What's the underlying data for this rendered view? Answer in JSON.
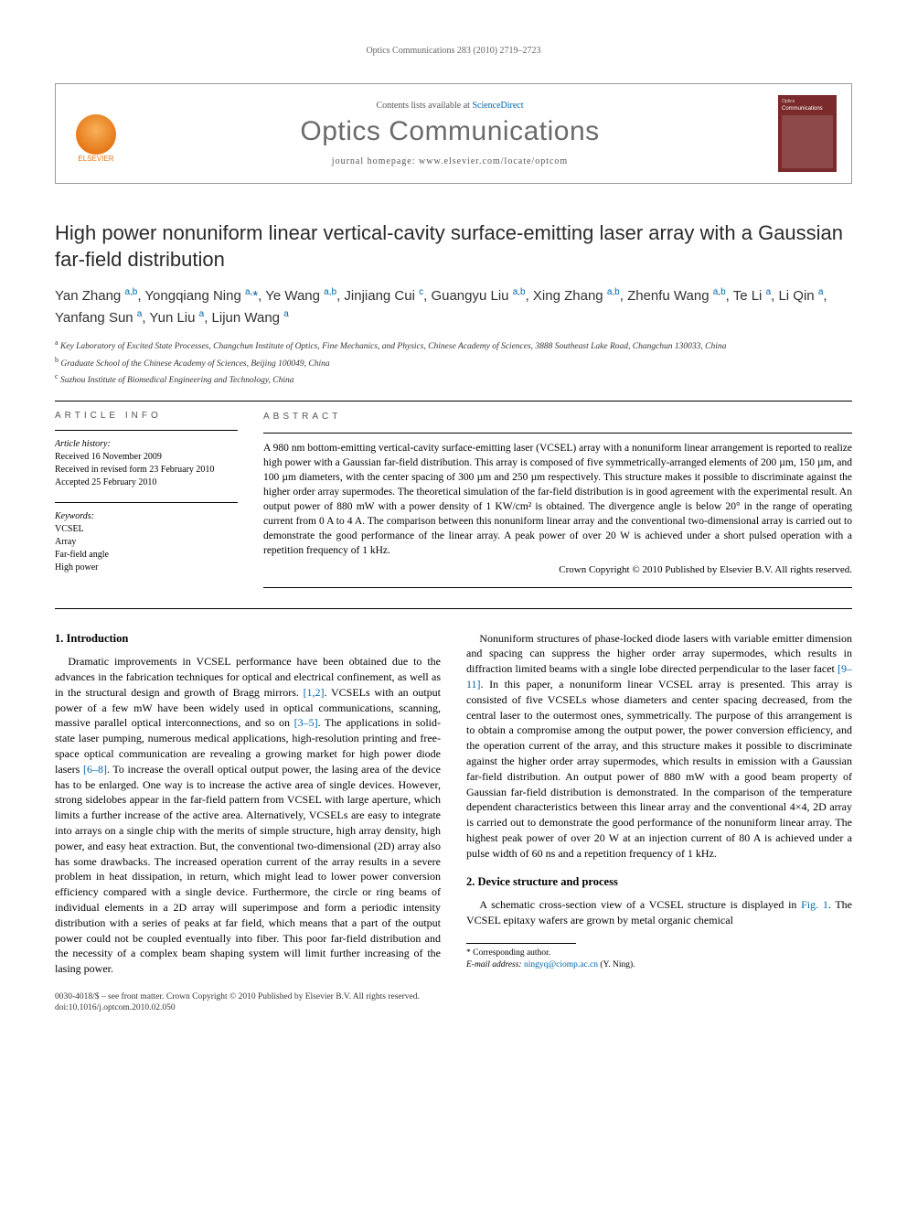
{
  "running_head": "Optics Communications 283 (2010) 2719–2723",
  "masthead": {
    "contents_prefix": "Contents lists available at ",
    "contents_link": "ScienceDirect",
    "journal": "Optics Communications",
    "homepage_prefix": "journal homepage: ",
    "homepage": "www.elsevier.com/locate/optcom",
    "elsevier_label": "ELSEVIER",
    "cover_pub": "Optics",
    "cover_title": "Communications"
  },
  "title": "High power nonuniform linear vertical-cavity surface-emitting laser array with a Gaussian far-field distribution",
  "authors_html": "Yan Zhang <sup>a,b</sup>, Yongqiang Ning <sup>a,</sup><span class='star'>*</span>, Ye Wang <sup>a,b</sup>, Jinjiang Cui <sup>c</sup>, Guangyu Liu <sup>a,b</sup>, Xing Zhang <sup>a,b</sup>, Zhenfu Wang <sup>a,b</sup>, Te Li <sup>a</sup>, Li Qin <sup>a</sup>, Yanfang Sun <sup>a</sup>, Yun Liu <sup>a</sup>, Lijun Wang <sup>a</sup>",
  "affiliations": [
    {
      "mark": "a",
      "text": "Key Laboratory of Excited State Processes, Changchun Institute of Optics, Fine Mechanics, and Physics, Chinese Academy of Sciences, 3888 Southeast Lake Road, Changchun 130033, China"
    },
    {
      "mark": "b",
      "text": "Graduate School of the Chinese Academy of Sciences, Beijing 100049, China"
    },
    {
      "mark": "c",
      "text": "Suzhou Institute of Biomedical Engineering and Technology, China"
    }
  ],
  "info": {
    "head": "ARTICLE INFO",
    "history_label": "Article history:",
    "history": [
      "Received 16 November 2009",
      "Received in revised form 23 February 2010",
      "Accepted 25 February 2010"
    ],
    "keywords_label": "Keywords:",
    "keywords": [
      "VCSEL",
      "Array",
      "Far-field angle",
      "High power"
    ]
  },
  "abstract": {
    "head": "ABSTRACT",
    "text": "A 980 nm bottom-emitting vertical-cavity surface-emitting laser (VCSEL) array with a nonuniform linear arrangement is reported to realize high power with a Gaussian far-field distribution. This array is composed of five symmetrically-arranged elements of 200 µm, 150 µm, and 100 µm diameters, with the center spacing of 300 µm and 250 µm respectively. This structure makes it possible to discriminate against the higher order array supermodes. The theoretical simulation of the far-field distribution is in good agreement with the experimental result. An output power of 880 mW with a power density of 1 KW/cm² is obtained. The divergence angle is below 20° in the range of operating current from 0 A to 4 A. The comparison between this nonuniform linear array and the conventional two-dimensional array is carried out to demonstrate the good performance of the linear array. A peak power of over 20 W is achieved under a short pulsed operation with a repetition frequency of 1 kHz.",
    "copyright": "Crown Copyright © 2010 Published by Elsevier B.V. All rights reserved."
  },
  "sections": {
    "intro_head": "1. Introduction",
    "intro_p1_a": "Dramatic improvements in VCSEL performance have been obtained due to the advances in the fabrication techniques for optical and electrical confinement, as well as in the structural design and growth of Bragg mirrors. ",
    "ref12": "[1,2]",
    "intro_p1_b": ". VCSELs with an output power of a few mW have been widely used in optical communications, scanning, massive parallel optical interconnections, and so on ",
    "ref35": "[3–5]",
    "intro_p1_c": ". The applications in solid-state laser pumping, numerous medical applications, high-resolution printing and free-space optical communication are revealing a growing market for high power diode lasers ",
    "ref68": "[6–8]",
    "intro_p1_d": ". To increase the overall optical output power, the lasing area of the device has to be enlarged. One way is to increase the active area of single devices. However, strong sidelobes appear in the far-field pattern from VCSEL with large aperture, which limits a further increase of the active area. Alternatively, VCSELs are easy to integrate into arrays on a single chip with the merits of simple structure, high array density, high power, and easy heat extraction. But, the conventional two-dimensional (2D) array also has some drawbacks. The increased operation current of the array results in a severe problem in heat dissipation, in return, which might lead to lower power conversion efficiency compared with a single device. Furthermore, the circle or ring beams of individual elements in a 2D array will superimpose and form a periodic intensity distribution with a series of peaks at far field, which means that a part of the output power could not be coupled eventually into fiber. This poor far-field distribution and the necessity of a complex beam shaping system will limit further increasing of the lasing power.",
    "intro_p2_a": "Nonuniform structures of phase-locked diode lasers with variable emitter dimension and spacing can suppress the higher order array supermodes, which results in diffraction limited beams with a single lobe directed perpendicular to the laser facet ",
    "ref911": "[9–11]",
    "intro_p2_b": ". In this paper, a nonuniform linear VCSEL array is presented. This array is consisted of five VCSELs whose diameters and center spacing decreased, from the central laser to the outermost ones, symmetrically. The purpose of this arrangement is to obtain a compromise among the output power, the power conversion efficiency, and the operation current of the array, and this structure makes it possible to discriminate against the higher order array supermodes, which results in emission with a Gaussian far-field distribution. An output power of 880 mW with a good beam property of Gaussian far-field distribution is demonstrated. In the comparison of the temperature dependent characteristics between this linear array and the conventional 4×4, 2D array is carried out to demonstrate the good performance of the nonuniform linear array. The highest peak power of over 20 W at an injection current of 80 A is achieved under a pulse width of 60 ns and a repetition frequency of 1 kHz.",
    "sec2_head": "2. Device structure and process",
    "sec2_p1_a": "A schematic cross-section view of a VCSEL structure is displayed in ",
    "fig1": "Fig. 1",
    "sec2_p1_b": ". The VCSEL epitaxy wafers are grown by metal organic chemical"
  },
  "footnote": {
    "corr": "* Corresponding author.",
    "email_label": "E-mail address: ",
    "email": "ningyq@ciomp.ac.cn",
    "email_who": " (Y. Ning)."
  },
  "bottom": {
    "line1": "0030-4018/$ – see front matter. Crown Copyright © 2010 Published by Elsevier B.V. All rights reserved.",
    "line2": "doi:10.1016/j.optcom.2010.02.050"
  },
  "colors": {
    "link": "#0066aa",
    "elsevier": "#e67817",
    "cover": "#7a2a2a",
    "grey_text": "#6b6b6b"
  }
}
